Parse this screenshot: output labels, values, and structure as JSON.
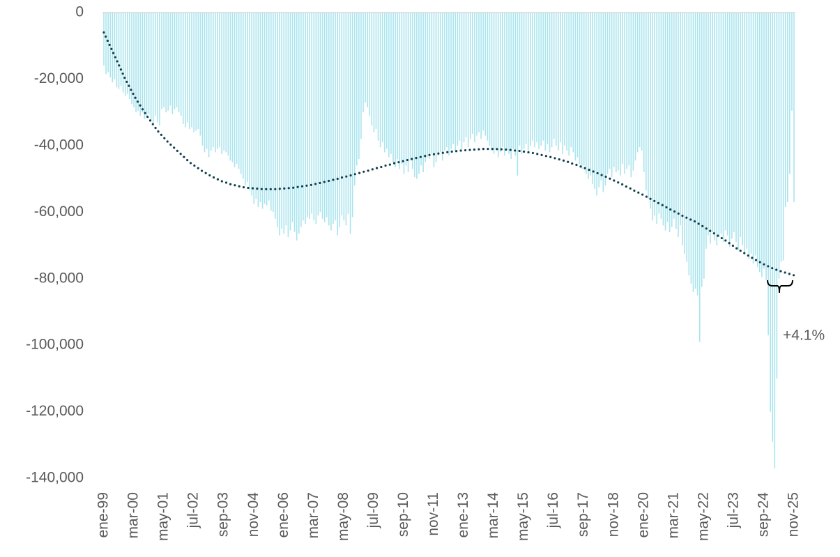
{
  "chart_data": {
    "type": "bar",
    "categories": [
      "ene-99",
      null,
      null,
      null,
      null,
      null,
      null,
      null,
      null,
      null,
      null,
      null,
      null,
      null,
      "mar-00",
      null,
      null,
      null,
      null,
      null,
      null,
      null,
      null,
      null,
      null,
      null,
      null,
      null,
      "may-01",
      null,
      null,
      null,
      null,
      null,
      null,
      null,
      null,
      null,
      null,
      null,
      null,
      null,
      "jul-02",
      null,
      null,
      null,
      null,
      null,
      null,
      null,
      null,
      null,
      null,
      null,
      null,
      null,
      "sep-03",
      null,
      null,
      null,
      null,
      null,
      null,
      null,
      null,
      null,
      null,
      null,
      null,
      null,
      "nov-04",
      null,
      null,
      null,
      null,
      null,
      null,
      null,
      null,
      null,
      null,
      null,
      null,
      null,
      "ene-06",
      null,
      null,
      null,
      null,
      null,
      null,
      null,
      null,
      null,
      null,
      null,
      null,
      null,
      "mar-07",
      null,
      null,
      null,
      null,
      null,
      null,
      null,
      null,
      null,
      null,
      null,
      null,
      null,
      "may-08",
      null,
      null,
      null,
      null,
      null,
      null,
      null,
      null,
      null,
      null,
      null,
      null,
      null,
      "jul-09",
      null,
      null,
      null,
      null,
      null,
      null,
      null,
      null,
      null,
      null,
      null,
      null,
      null,
      "sep-10",
      null,
      null,
      null,
      null,
      null,
      null,
      null,
      null,
      null,
      null,
      null,
      null,
      null,
      "nov-11",
      null,
      null,
      null,
      null,
      null,
      null,
      null,
      null,
      null,
      null,
      null,
      null,
      null,
      "ene-13",
      null,
      null,
      null,
      null,
      null,
      null,
      null,
      null,
      null,
      null,
      null,
      null,
      null,
      "mar-14",
      null,
      null,
      null,
      null,
      null,
      null,
      null,
      null,
      null,
      null,
      null,
      null,
      null,
      "may-15",
      null,
      null,
      null,
      null,
      null,
      null,
      null,
      null,
      null,
      null,
      null,
      null,
      null,
      "jul-16",
      null,
      null,
      null,
      null,
      null,
      null,
      null,
      null,
      null,
      null,
      null,
      null,
      null,
      "sep-17",
      null,
      null,
      null,
      null,
      null,
      null,
      null,
      null,
      null,
      null,
      null,
      null,
      null,
      "nov-18",
      null,
      null,
      null,
      null,
      null,
      null,
      null,
      null,
      null,
      null,
      null,
      null,
      null,
      "ene-20",
      null,
      null,
      null,
      null,
      null,
      null,
      null,
      null,
      null,
      null,
      null,
      null,
      null,
      "mar-21",
      null,
      null,
      null,
      null,
      null,
      null,
      null,
      null,
      null,
      null,
      null,
      null,
      null,
      "may-22",
      null,
      null,
      null,
      null,
      null,
      null,
      null,
      null,
      null,
      null,
      null,
      null,
      null,
      "jul-23",
      null,
      null,
      null,
      null,
      null,
      null,
      null,
      null,
      null,
      null,
      null,
      null,
      null,
      "sep-24",
      null,
      null,
      null,
      null,
      null,
      null,
      null,
      null,
      null,
      null,
      null,
      null,
      null,
      "nov-25"
    ],
    "series": [
      {
        "color": "#a9e4ee",
        "values": [
          -16000,
          -18500,
          -18000,
          -19500,
          -21000,
          -20000,
          -22500,
          -23000,
          -22000,
          -24000,
          -25000,
          -24500,
          -26000,
          -27500,
          -28500,
          -30000,
          -29500,
          -31000,
          -30000,
          -32000,
          -31500,
          -30500,
          -32500,
          -33500,
          -31000,
          -33000,
          -34000,
          -29000,
          -28500,
          -30000,
          -29500,
          -28000,
          -30500,
          -29000,
          -28500,
          -30000,
          -31000,
          -33500,
          -34500,
          -33000,
          -35000,
          -34500,
          -36000,
          -35500,
          -35000,
          -37000,
          -40000,
          -42000,
          -41000,
          -43500,
          -41500,
          -40500,
          -42000,
          -41000,
          -40500,
          -42500,
          -41500,
          -42000,
          -43000,
          -44500,
          -45000,
          -46500,
          -45500,
          -47000,
          -48500,
          -50000,
          -52000,
          -51000,
          -53500,
          -55000,
          -57500,
          -56000,
          -58500,
          -57000,
          -59000,
          -57500,
          -58000,
          -56500,
          -59500,
          -60000,
          -62000,
          -64500,
          -67000,
          -65000,
          -66500,
          -64000,
          -67500,
          -65500,
          -63000,
          -66000,
          -68500,
          -66500,
          -64500,
          -62500,
          -63500,
          -61500,
          -62000,
          -60500,
          -62500,
          -63500,
          -61000,
          -60000,
          -62000,
          -63000,
          -61500,
          -64000,
          -65500,
          -63500,
          -62500,
          -67000,
          -64500,
          -61000,
          -62500,
          -64000,
          -60500,
          -66500,
          -61500,
          -52000,
          -46000,
          -44000,
          -38000,
          -30000,
          -27000,
          -28500,
          -31000,
          -34000,
          -36000,
          -35000,
          -38500,
          -40500,
          -39000,
          -42000,
          -41000,
          -43500,
          -42500,
          -45000,
          -46500,
          -44000,
          -47000,
          -45500,
          -48500,
          -46000,
          -48000,
          -44500,
          -47000,
          -49500,
          -50000,
          -48500,
          -46000,
          -48000,
          -45000,
          -43500,
          -44000,
          -42500,
          -46500,
          -45000,
          -43000,
          -42000,
          -44500,
          -41500,
          -40500,
          -43000,
          -41000,
          -39500,
          -42000,
          -40000,
          -38500,
          -41000,
          -39000,
          -37500,
          -40500,
          -38000,
          -36500,
          -39000,
          -37000,
          -36000,
          -38000,
          -35500,
          -37000,
          -38500,
          -40000,
          -41500,
          -42500,
          -41000,
          -43500,
          -42000,
          -40500,
          -43000,
          -41500,
          -42500,
          -44000,
          -41000,
          -43000,
          -49000,
          -40000,
          -42500,
          -41000,
          -39500,
          -41500,
          -40000,
          -38500,
          -40500,
          -39000,
          -41000,
          -40000,
          -38500,
          -41500,
          -39500,
          -42000,
          -40500,
          -38000,
          -40000,
          -41500,
          -39000,
          -42500,
          -40000,
          -41500,
          -43000,
          -40500,
          -42000,
          -44500,
          -43500,
          -45500,
          -47000,
          -46000,
          -48500,
          -50000,
          -49000,
          -51500,
          -53000,
          -55000,
          -52500,
          -50500,
          -54000,
          -52000,
          -48500,
          -47000,
          -49500,
          -46500,
          -48000,
          -47500,
          -49000,
          -45500,
          -48500,
          -47000,
          -46000,
          -49500,
          -47500,
          -44500,
          -42000,
          -40500,
          -41500,
          -48000,
          -53500,
          -56000,
          -59000,
          -62500,
          -61000,
          -63500,
          -60500,
          -62000,
          -64000,
          -65500,
          -63000,
          -66000,
          -64500,
          -62000,
          -65000,
          -67500,
          -64000,
          -70000,
          -72500,
          -75000,
          -79000,
          -81500,
          -84000,
          -83000,
          -85000,
          -99000,
          -82500,
          -80000,
          -71000,
          -67000,
          -69500,
          -66000,
          -68500,
          -70000,
          -67500,
          -66500,
          -69000,
          -65500,
          -67000,
          -70500,
          -68000,
          -66000,
          -69000,
          -71500,
          -67500,
          -70000,
          -72500,
          -71000,
          -74000,
          -72500,
          -75500,
          -73000,
          -76500,
          -78000,
          -79500,
          -77000,
          -80500,
          -97000,
          -120000,
          -129000,
          -137000,
          -110000,
          -80000,
          -75000,
          -74500,
          -58500,
          -57000,
          -48500,
          -29500,
          -57000
        ]
      },
      {
        "type": "line",
        "color": "#0e3f4c",
        "dotted": true,
        "values": [
          -6000,
          -7400,
          -8800,
          -10200,
          -11600,
          -13000,
          -14400,
          -15800,
          -17200,
          -18600,
          -20000,
          -21200,
          -22400,
          -23600,
          -24800,
          -26000,
          -27000,
          -28000,
          -29000,
          -30000,
          -31000,
          -31900,
          -32800,
          -33700,
          -34600,
          -35500,
          -36200,
          -36900,
          -37600,
          -38300,
          -39000,
          -39600,
          -40200,
          -40800,
          -41400,
          -42000,
          -42600,
          -43200,
          -43800,
          -44400,
          -45000,
          -45500,
          -45900,
          -46400,
          -46800,
          -47300,
          -47700,
          -48100,
          -48400,
          -48800,
          -49200,
          -49500,
          -49800,
          -50100,
          -50400,
          -50700,
          -50900,
          -51100,
          -51400,
          -51600,
          -51800,
          -51900,
          -52100,
          -52200,
          -52400,
          -52500,
          -52600,
          -52700,
          -52700,
          -52800,
          -52900,
          -52900,
          -53000,
          -53000,
          -53100,
          -53100,
          -53100,
          -53100,
          -53100,
          -53100,
          -53100,
          -53100,
          -53000,
          -53000,
          -52900,
          -52900,
          -52800,
          -52700,
          -52700,
          -52600,
          -52500,
          -52400,
          -52300,
          -52200,
          -52100,
          -52000,
          -51900,
          -51800,
          -51600,
          -51500,
          -51400,
          -51200,
          -51100,
          -50900,
          -50800,
          -50600,
          -50400,
          -50300,
          -50100,
          -50000,
          -49800,
          -49600,
          -49500,
          -49300,
          -49200,
          -49000,
          -48800,
          -48600,
          -48500,
          -48300,
          -48100,
          -47900,
          -47700,
          -47600,
          -47400,
          -47200,
          -47000,
          -46800,
          -46700,
          -46500,
          -46300,
          -46100,
          -45900,
          -45800,
          -45600,
          -45400,
          -45200,
          -45100,
          -44900,
          -44800,
          -44600,
          -44400,
          -44300,
          -44100,
          -44000,
          -43800,
          -43700,
          -43500,
          -43400,
          -43200,
          -43100,
          -43000,
          -42800,
          -42700,
          -42600,
          -42500,
          -42400,
          -42300,
          -42200,
          -42100,
          -42000,
          -41900,
          -41800,
          -41800,
          -41700,
          -41600,
          -41500,
          -41500,
          -41400,
          -41400,
          -41300,
          -41300,
          -41200,
          -41200,
          -41100,
          -41100,
          -41100,
          -41000,
          -41000,
          -41000,
          -41000,
          -41000,
          -41000,
          -41000,
          -41100,
          -41100,
          -41100,
          -41200,
          -41200,
          -41300,
          -41300,
          -41400,
          -41500,
          -41500,
          -41600,
          -41700,
          -41800,
          -41900,
          -42000,
          -42100,
          -42200,
          -42300,
          -42500,
          -42600,
          -42800,
          -42900,
          -43100,
          -43200,
          -43400,
          -43500,
          -43700,
          -43900,
          -44100,
          -44200,
          -44400,
          -44600,
          -44800,
          -45000,
          -45300,
          -45500,
          -45700,
          -45900,
          -46200,
          -46400,
          -46700,
          -46900,
          -47200,
          -47400,
          -47700,
          -47900,
          -48200,
          -48500,
          -48800,
          -49000,
          -49300,
          -49600,
          -49900,
          -50200,
          -50500,
          -50800,
          -51100,
          -51400,
          -51700,
          -52100,
          -52400,
          -52700,
          -53000,
          -53400,
          -53700,
          -54000,
          -54300,
          -54600,
          -55000,
          -55300,
          -55700,
          -56000,
          -56300,
          -56700,
          -57000,
          -57400,
          -57700,
          -58000,
          -58400,
          -58700,
          -59100,
          -59400,
          -59700,
          -60100,
          -60400,
          -60800,
          -61100,
          -61400,
          -61700,
          -62000,
          -62300,
          -62500,
          -62900,
          -63300,
          -63700,
          -64100,
          -64500,
          -64900,
          -65300,
          -65700,
          -66100,
          -66500,
          -66900,
          -67300,
          -67700,
          -68100,
          -68500,
          -69000,
          -69400,
          -69900,
          -70300,
          -70800,
          -71200,
          -71600,
          -72000,
          -72400,
          -72800,
          -73200,
          -73600,
          -73900,
          -74300,
          -74700,
          -75000,
          -75300,
          -75700,
          -76000,
          -76300,
          -76600,
          -76900,
          -77100,
          -77400,
          -77600,
          -77800,
          -78000,
          -78200,
          -78400,
          -78600,
          -78800,
          -79000
        ]
      }
    ],
    "ylim": [
      -140000,
      0
    ],
    "yticks": [
      0,
      {
        "value": -20000,
        "label": "-20,000"
      },
      {
        "value": -40000,
        "label": "-40,000"
      },
      {
        "value": -60000,
        "label": "-60,000"
      },
      {
        "value": -80000,
        "label": "-80,000"
      },
      {
        "value": -100000,
        "label": "-100,000"
      },
      {
        "value": -120000,
        "label": "-120,000"
      },
      {
        "value": -140000,
        "label": "-140,000"
      }
    ],
    "grid": false,
    "annotation": "+4.1%"
  }
}
